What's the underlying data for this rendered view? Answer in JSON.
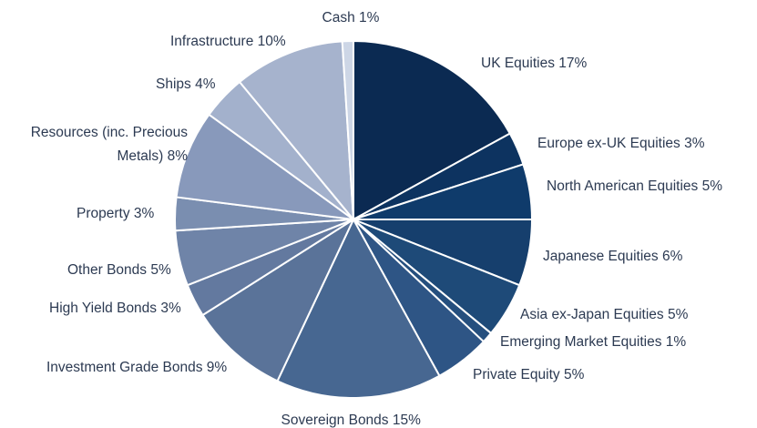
{
  "chart_data": {
    "type": "pie",
    "categories": [
      "UK Equities",
      "Europe ex-UK Equities",
      "North American Equities",
      "Japanese Equities",
      "Asia ex-Japan Equities",
      "Emerging Market Equities",
      "Private Equity",
      "Sovereign Bonds",
      "Investment Grade Bonds",
      "High Yield Bonds",
      "Other Bonds",
      "Property",
      "Resources (inc. Precious Metals)",
      "Ships",
      "Infrastructure",
      "Cash"
    ],
    "values": [
      17,
      3,
      5,
      6,
      5,
      1,
      5,
      15,
      9,
      3,
      5,
      3,
      8,
      4,
      10,
      1
    ],
    "value_labels": [
      "17%",
      "3%",
      "5%",
      "6%",
      "5%",
      "1%",
      "5%",
      "15%",
      "9%",
      "3%",
      "5%",
      "3%",
      "8%",
      "4%",
      "10%",
      "1%"
    ],
    "colors": [
      "#0b2a52",
      "#0d3360",
      "#0f3b6b",
      "#163f6d",
      "#1e4a78",
      "#254f7e",
      "#2e5585",
      "#476791",
      "#5a7399",
      "#63799f",
      "#6f84a8",
      "#7a8eb0",
      "#8899bb",
      "#a3b1cc",
      "#a6b3cd",
      "#cdd6e6"
    ]
  }
}
